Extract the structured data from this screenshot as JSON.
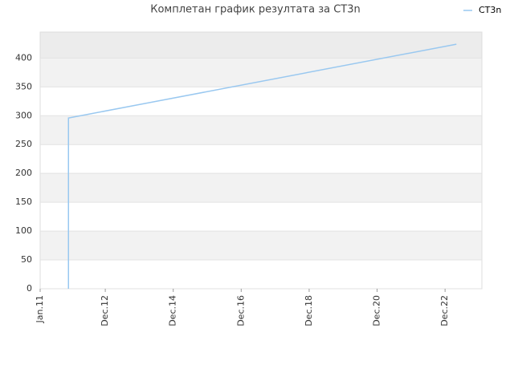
{
  "chart_data": {
    "type": "line",
    "title": "Комплетан график резултата за CT3n",
    "x": [
      "2011-11",
      "2011-11",
      "2023-04"
    ],
    "series": [
      {
        "name": "CT3n",
        "color": "#99c8f0",
        "values": [
          0,
          296,
          424
        ]
      }
    ],
    "xlim": [
      "2011-01",
      "2024-01"
    ],
    "xticks": [
      {
        "value": "2011-01",
        "label": "Jan.11"
      },
      {
        "value": "2012-12",
        "label": "Dec.12"
      },
      {
        "value": "2014-12",
        "label": "Dec.14"
      },
      {
        "value": "2016-12",
        "label": "Dec.16"
      },
      {
        "value": "2018-12",
        "label": "Dec.18"
      },
      {
        "value": "2020-12",
        "label": "Dec.20"
      },
      {
        "value": "2022-12",
        "label": "Dec.22"
      }
    ],
    "ylim": [
      0,
      445
    ],
    "yticks": [
      0,
      50,
      100,
      150,
      200,
      250,
      300,
      350,
      400
    ],
    "grid": true,
    "legend": "top-right"
  }
}
